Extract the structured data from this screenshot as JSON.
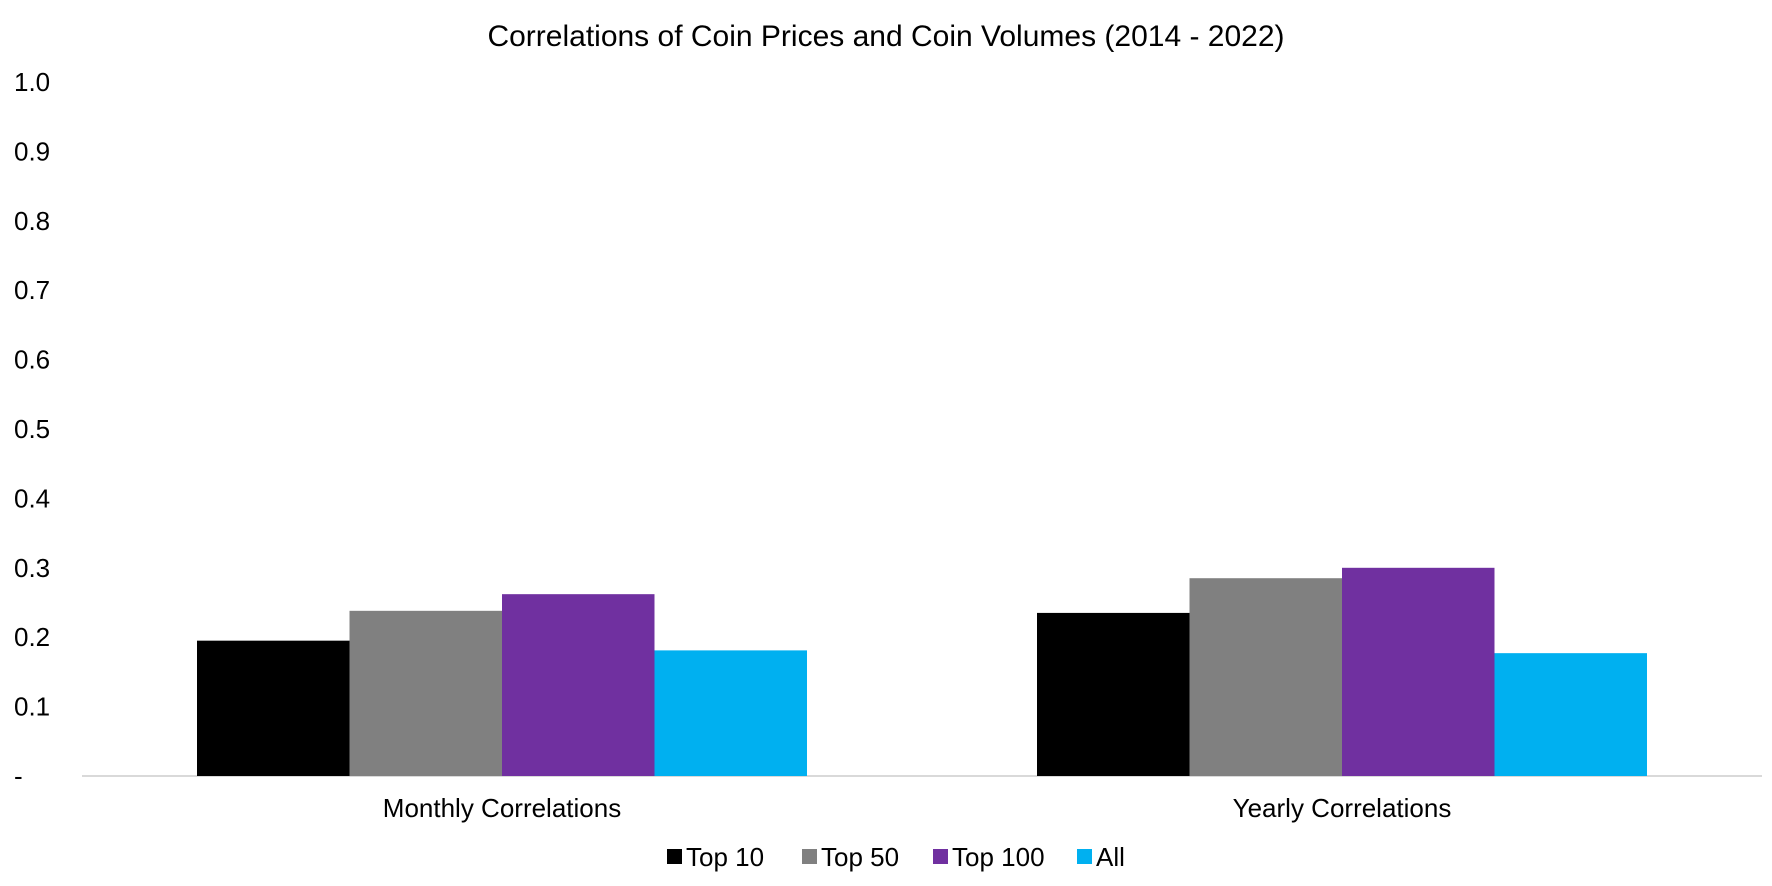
{
  "chart_data": {
    "type": "bar",
    "title": "Correlations of Coin Prices and Coin Volumes (2014 - 2022)",
    "xlabel": "",
    "ylabel": "",
    "categories": [
      "Monthly Correlations",
      "Yearly Correlations"
    ],
    "series": [
      {
        "name": "Top 10",
        "color": "#000000",
        "values": [
          0.195,
          0.235
        ]
      },
      {
        "name": "Top 50",
        "color": "#808080",
        "values": [
          0.238,
          0.285
        ]
      },
      {
        "name": "Top 100",
        "color": "#7030A0",
        "values": [
          0.262,
          0.3
        ]
      },
      {
        "name": "All",
        "color": "#00B0F0",
        "values": [
          0.181,
          0.177
        ]
      }
    ],
    "ylim": [
      0,
      1.0
    ],
    "yticks": [
      "-",
      "0.1",
      "0.2",
      "0.3",
      "0.4",
      "0.5",
      "0.6",
      "0.7",
      "0.8",
      "0.9",
      "1.0"
    ],
    "grid": false,
    "legend_position": "bottom"
  }
}
